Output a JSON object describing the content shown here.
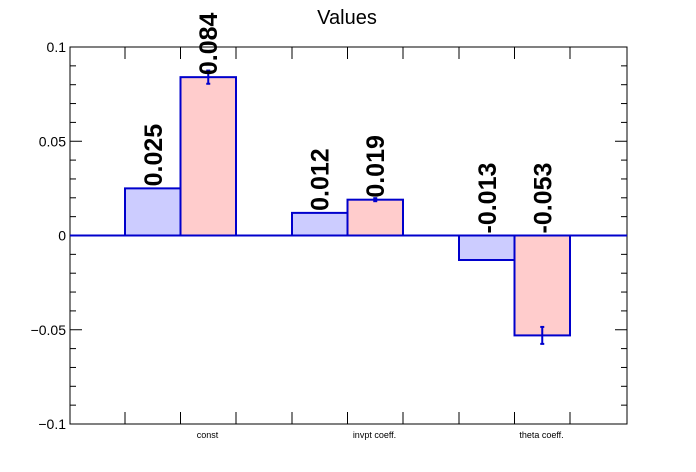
{
  "chart_data": {
    "type": "bar",
    "title": "Values",
    "xlabel": "",
    "ylabel": "",
    "ylim": [
      -0.1,
      0.1
    ],
    "yticks": [
      -0.1,
      -0.05,
      0,
      0.05,
      0.1
    ],
    "ytick_labels": [
      "−0.1",
      "−0.05",
      "0",
      "0.05",
      "0.1"
    ],
    "categories": [
      "const",
      "invpt coeff.",
      "theta coeff."
    ],
    "series": [
      {
        "values": [
          0.025,
          0.012,
          -0.013
        ],
        "labels": [
          "0.025",
          "0.012",
          "-0.013"
        ],
        "errors": [
          0,
          0,
          0
        ],
        "color": "#ccccff"
      },
      {
        "values": [
          0.084,
          0.019,
          -0.053
        ],
        "labels": [
          "0.084",
          "0.019",
          "-0.053"
        ],
        "errors": [
          0.0035,
          0.0008,
          0.0045
        ],
        "color": "#ffcccc"
      }
    ],
    "edge_color": "#0000cc",
    "grid": false,
    "legend": "none"
  }
}
